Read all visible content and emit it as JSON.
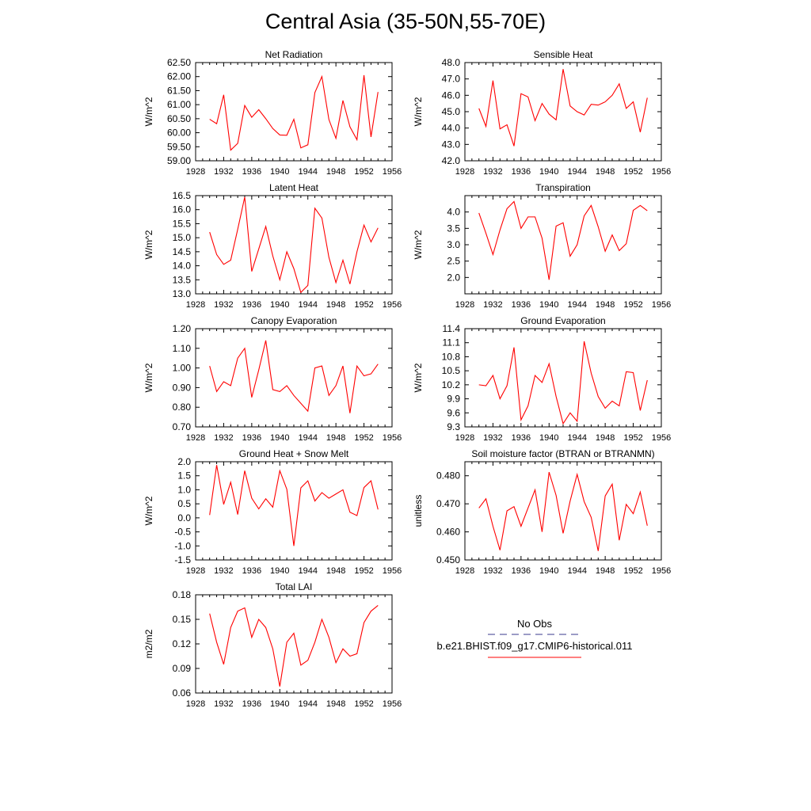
{
  "figure": {
    "title": "Central Asia (35-50N,55-70E)"
  },
  "legend": {
    "obs_label": "No Obs",
    "model_label": "b.e21.BHIST.f09_g17.CMIP6-historical.011",
    "obs_color": "#3a3a8c",
    "model_color": "#ff0000"
  },
  "chart_data": [
    {
      "type": "line",
      "title": "Net Radiation",
      "ylabel": "W/m^2",
      "xlim": [
        1928,
        1956
      ],
      "ylim": [
        59.0,
        62.5
      ],
      "xticks": [
        1928,
        1932,
        1936,
        1940,
        1944,
        1948,
        1952,
        1956
      ],
      "yticks": [
        "59.00",
        "59.50",
        "60.00",
        "60.50",
        "61.00",
        "61.50",
        "62.00",
        "62.50"
      ],
      "x": [
        1930,
        1931,
        1932,
        1933,
        1934,
        1935,
        1936,
        1937,
        1938,
        1939,
        1940,
        1941,
        1942,
        1943,
        1944,
        1945,
        1946,
        1947,
        1948,
        1949,
        1950,
        1951,
        1952,
        1953,
        1954
      ],
      "series": [
        {
          "values": [
            60.48,
            60.32,
            61.35,
            59.38,
            59.62,
            60.97,
            60.55,
            60.82,
            60.5,
            60.15,
            59.92,
            59.91,
            60.48,
            59.46,
            59.57,
            61.43,
            62.0,
            60.47,
            59.8,
            61.15,
            60.21,
            59.75,
            62.05,
            59.85,
            61.45
          ]
        }
      ]
    },
    {
      "type": "line",
      "title": "Sensible Heat",
      "ylabel": "W/m^2",
      "xlim": [
        1928,
        1956
      ],
      "ylim": [
        42.0,
        48.0
      ],
      "xticks": [
        1928,
        1932,
        1936,
        1940,
        1944,
        1948,
        1952,
        1956
      ],
      "yticks": [
        "42.0",
        "43.0",
        "44.0",
        "45.0",
        "46.0",
        "47.0",
        "48.0"
      ],
      "x": [
        1930,
        1931,
        1932,
        1933,
        1934,
        1935,
        1936,
        1937,
        1938,
        1939,
        1940,
        1941,
        1942,
        1943,
        1944,
        1945,
        1946,
        1947,
        1948,
        1949,
        1950,
        1951,
        1952,
        1953,
        1954
      ],
      "series": [
        {
          "values": [
            45.2,
            44.1,
            46.9,
            43.95,
            44.2,
            42.9,
            46.1,
            45.9,
            44.45,
            45.5,
            44.85,
            44.5,
            47.6,
            45.35,
            45.0,
            44.8,
            45.45,
            45.4,
            45.6,
            46.0,
            46.7,
            45.2,
            45.6,
            43.75,
            45.85
          ]
        }
      ]
    },
    {
      "type": "line",
      "title": "Latent Heat",
      "ylabel": "W/m^2",
      "xlim": [
        1928,
        1956
      ],
      "ylim": [
        13.0,
        16.5
      ],
      "xticks": [
        1928,
        1932,
        1936,
        1940,
        1944,
        1948,
        1952,
        1956
      ],
      "yticks": [
        "13.0",
        "13.5",
        "14.0",
        "14.5",
        "15.0",
        "15.5",
        "16.0",
        "16.5"
      ],
      "x": [
        1930,
        1931,
        1932,
        1933,
        1934,
        1935,
        1936,
        1937,
        1938,
        1939,
        1940,
        1941,
        1942,
        1943,
        1944,
        1945,
        1946,
        1947,
        1948,
        1949,
        1950,
        1951,
        1952,
        1953,
        1954
      ],
      "series": [
        {
          "values": [
            15.2,
            14.4,
            14.05,
            14.2,
            15.3,
            16.45,
            13.8,
            14.6,
            15.4,
            14.35,
            13.5,
            14.5,
            13.9,
            13.05,
            13.3,
            16.05,
            15.7,
            14.3,
            13.4,
            14.2,
            13.35,
            14.5,
            15.45,
            14.85,
            15.35
          ]
        }
      ]
    },
    {
      "type": "line",
      "title": "Transpiration",
      "ylabel": "W/m^2",
      "xlim": [
        1928,
        1956
      ],
      "ylim": [
        1.5,
        4.5
      ],
      "xticks": [
        1928,
        1932,
        1936,
        1940,
        1944,
        1948,
        1952,
        1956
      ],
      "yticks": [
        "2.0",
        "2.5",
        "3.0",
        "3.5",
        "4.0"
      ],
      "ytick_values": [
        2.0,
        2.5,
        3.0,
        3.5,
        4.0
      ],
      "x": [
        1930,
        1931,
        1932,
        1933,
        1934,
        1935,
        1936,
        1937,
        1938,
        1939,
        1940,
        1941,
        1942,
        1943,
        1944,
        1945,
        1946,
        1947,
        1948,
        1949,
        1950,
        1951,
        1952,
        1953,
        1954
      ],
      "series": [
        {
          "values": [
            3.97,
            3.35,
            2.7,
            3.45,
            4.1,
            4.32,
            3.5,
            3.85,
            3.85,
            3.2,
            1.93,
            3.57,
            3.67,
            2.65,
            3.0,
            3.88,
            4.2,
            3.55,
            2.8,
            3.3,
            2.82,
            3.03,
            4.05,
            4.2,
            4.04
          ]
        }
      ]
    },
    {
      "type": "line",
      "title": "Canopy Evaporation",
      "ylabel": "W/m^2",
      "xlim": [
        1928,
        1956
      ],
      "ylim": [
        0.7,
        1.2
      ],
      "xticks": [
        1928,
        1932,
        1936,
        1940,
        1944,
        1948,
        1952,
        1956
      ],
      "yticks": [
        "0.70",
        "0.80",
        "0.90",
        "1.00",
        "1.10",
        "1.20"
      ],
      "x": [
        1930,
        1931,
        1932,
        1933,
        1934,
        1935,
        1936,
        1937,
        1938,
        1939,
        1940,
        1941,
        1942,
        1943,
        1944,
        1945,
        1946,
        1947,
        1948,
        1949,
        1950,
        1951,
        1952,
        1953,
        1954
      ],
      "series": [
        {
          "values": [
            1.01,
            0.88,
            0.93,
            0.91,
            1.05,
            1.1,
            0.85,
            0.99,
            1.14,
            0.89,
            0.88,
            0.91,
            0.86,
            0.82,
            0.78,
            1.0,
            1.01,
            0.86,
            0.91,
            1.01,
            0.77,
            1.01,
            0.96,
            0.97,
            1.02
          ]
        }
      ]
    },
    {
      "type": "line",
      "title": "Ground Evaporation",
      "ylabel": "W/m^2",
      "xlim": [
        1928,
        1956
      ],
      "ylim": [
        9.3,
        11.4
      ],
      "xticks": [
        1928,
        1932,
        1936,
        1940,
        1944,
        1948,
        1952,
        1956
      ],
      "yticks": [
        "9.3",
        "9.6",
        "9.9",
        "10.2",
        "10.5",
        "10.8",
        "11.1",
        "11.4"
      ],
      "x": [
        1930,
        1931,
        1932,
        1933,
        1934,
        1935,
        1936,
        1937,
        1938,
        1939,
        1940,
        1941,
        1942,
        1943,
        1944,
        1945,
        1946,
        1947,
        1948,
        1949,
        1950,
        1951,
        1952,
        1953,
        1954
      ],
      "series": [
        {
          "values": [
            10.2,
            10.18,
            10.4,
            9.9,
            10.18,
            11.0,
            9.45,
            9.75,
            10.4,
            10.25,
            10.65,
            9.95,
            9.37,
            9.6,
            9.42,
            11.13,
            10.45,
            9.95,
            9.7,
            9.85,
            9.75,
            10.48,
            10.46,
            9.65,
            10.3
          ]
        }
      ]
    },
    {
      "type": "line",
      "title": "Ground Heat + Snow Melt",
      "ylabel": "W/m^2",
      "xlim": [
        1928,
        1956
      ],
      "ylim": [
        -1.5,
        2.0
      ],
      "xticks": [
        1928,
        1932,
        1936,
        1940,
        1944,
        1948,
        1952,
        1956
      ],
      "yticks": [
        "-1.5",
        "-1.0",
        "-0.5",
        "0.0",
        "0.5",
        "1.0",
        "1.5",
        "2.0"
      ],
      "x": [
        1930,
        1931,
        1932,
        1933,
        1934,
        1935,
        1936,
        1937,
        1938,
        1939,
        1940,
        1941,
        1942,
        1943,
        1944,
        1945,
        1946,
        1947,
        1948,
        1949,
        1950,
        1951,
        1952,
        1953,
        1954
      ],
      "series": [
        {
          "values": [
            0.1,
            1.88,
            0.48,
            1.27,
            0.12,
            1.68,
            0.7,
            0.32,
            0.68,
            0.38,
            1.68,
            1.02,
            -1.0,
            1.07,
            1.32,
            0.6,
            0.9,
            0.7,
            0.85,
            1.0,
            0.2,
            0.08,
            1.08,
            1.32,
            0.3
          ]
        }
      ]
    },
    {
      "type": "line",
      "title": "Soil moisture factor (BTRAN or BTRANMN)",
      "ylabel": "unitless",
      "xlim": [
        1928,
        1956
      ],
      "ylim": [
        0.45,
        0.485
      ],
      "xticks": [
        1928,
        1932,
        1936,
        1940,
        1944,
        1948,
        1952,
        1956
      ],
      "yticks": [
        "0.450",
        "0.460",
        "0.470",
        "0.480"
      ],
      "ytick_values": [
        0.45,
        0.46,
        0.47,
        0.48
      ],
      "x": [
        1930,
        1931,
        1932,
        1933,
        1934,
        1935,
        1936,
        1937,
        1938,
        1939,
        1940,
        1941,
        1942,
        1943,
        1944,
        1945,
        1946,
        1947,
        1948,
        1949,
        1950,
        1951,
        1952,
        1953,
        1954
      ],
      "series": [
        {
          "values": [
            0.4685,
            0.4718,
            0.462,
            0.4535,
            0.4675,
            0.469,
            0.462,
            0.4685,
            0.475,
            0.46,
            0.4813,
            0.473,
            0.4595,
            0.471,
            0.4805,
            0.4708,
            0.4652,
            0.4532,
            0.4728,
            0.477,
            0.457,
            0.4698,
            0.4665,
            0.4742,
            0.4622
          ]
        }
      ]
    },
    {
      "type": "line",
      "title": "Total LAI",
      "ylabel": "m2/m2",
      "xlim": [
        1928,
        1956
      ],
      "ylim": [
        0.06,
        0.18
      ],
      "xticks": [
        1928,
        1932,
        1936,
        1940,
        1944,
        1948,
        1952,
        1956
      ],
      "yticks": [
        "0.06",
        "0.09",
        "0.12",
        "0.15",
        "0.18"
      ],
      "x": [
        1930,
        1931,
        1932,
        1933,
        1934,
        1935,
        1936,
        1937,
        1938,
        1939,
        1940,
        1941,
        1942,
        1943,
        1944,
        1945,
        1946,
        1947,
        1948,
        1949,
        1950,
        1951,
        1952,
        1953,
        1954
      ],
      "series": [
        {
          "values": [
            0.157,
            0.122,
            0.095,
            0.14,
            0.16,
            0.164,
            0.128,
            0.15,
            0.14,
            0.114,
            0.068,
            0.122,
            0.133,
            0.094,
            0.1,
            0.122,
            0.15,
            0.128,
            0.097,
            0.114,
            0.105,
            0.108,
            0.146,
            0.16,
            0.167
          ]
        }
      ]
    }
  ]
}
